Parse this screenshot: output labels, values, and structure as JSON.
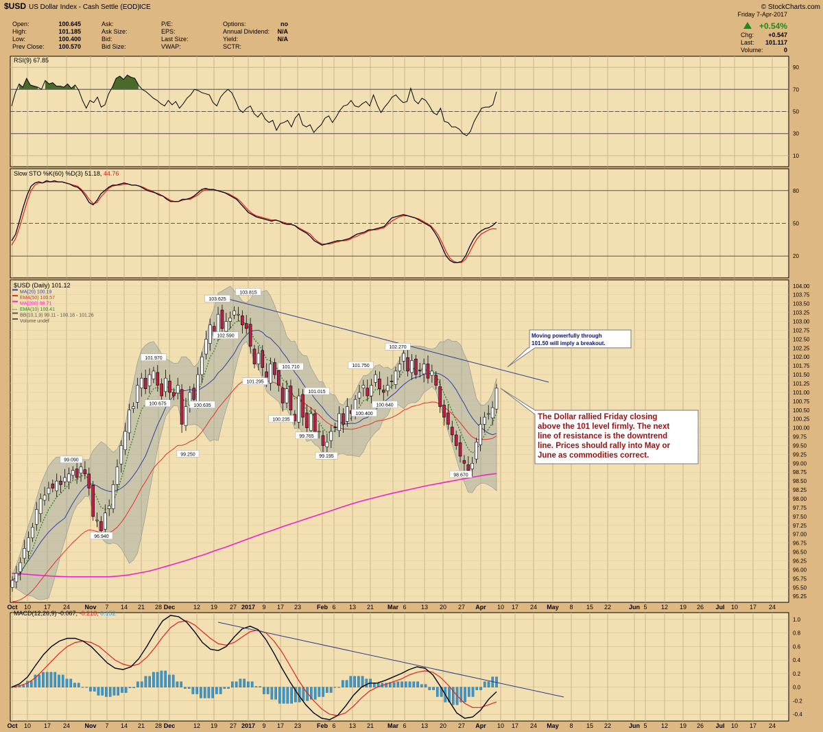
{
  "header": {
    "symbol": "$USD",
    "name": "US Dollar Index - Cash Settle (EOD)",
    "exchange": "ICE",
    "watermark": "© StockCharts.com",
    "date": "Friday  7-Apr-2017",
    "pct_change": "+0.54%",
    "quote_left": [
      {
        "label": "Open:",
        "value": "100.645"
      },
      {
        "label": "High:",
        "value": "101.185"
      },
      {
        "label": "Low:",
        "value": "100.400"
      },
      {
        "label": "Prev Close:",
        "value": "100.570"
      }
    ],
    "quote_mid": [
      "Ask:",
      "Ask Size:",
      "Bid:",
      "Bid Size:"
    ],
    "quote_mid2": [
      "P/E:",
      "EPS:",
      "Last Size:",
      "VWAP:"
    ],
    "quote_right": [
      {
        "label": "Options:",
        "value": "no"
      },
      {
        "label": "Annual Dividend:",
        "value": "N/A"
      },
      {
        "label": "Yield:",
        "value": "N/A"
      },
      {
        "label": "SCTR:",
        "value": ""
      }
    ],
    "quote_far": [
      {
        "label": "Chg:",
        "value": "+0.547"
      },
      {
        "label": "Last:",
        "value": "101.117"
      },
      {
        "label": "Volume:",
        "value": "0"
      }
    ]
  },
  "colors": {
    "bg_outer": "#deb882",
    "bg_panel": "#f2dfb2",
    "candle_up": "#ffffff",
    "candle_down": "#b3244a",
    "ma20": "#2e3fa0",
    "ema50": "#e03030",
    "ma200": "#ee22cc",
    "ema10": "#2a8a2a",
    "bb_fill": "#9aa6a0",
    "rsi_fill": "#4a6a2a",
    "macd_hist": "#3c98cc",
    "trend": "#283c90",
    "note_text": "#a01010",
    "note_text2": "#101070"
  },
  "x_ticks": [
    "Oct",
    "10",
    "17",
    "24",
    "Nov",
    "7",
    "14",
    "21",
    "28",
    "Dec",
    "12",
    "19",
    "27",
    "2017",
    "9",
    "17",
    "23",
    "Feb",
    "6",
    "13",
    "21",
    "Mar",
    "6",
    "13",
    "20",
    "27",
    "Apr",
    "10",
    "17",
    "24",
    "May",
    "8",
    "15",
    "22",
    "Jun",
    "5",
    "12",
    "19",
    "26",
    "Jul",
    "10",
    "17",
    "24"
  ],
  "x_ticks_bold": [
    "Oct",
    "Nov",
    "Dec",
    "2017",
    "Feb",
    "Mar",
    "Apr",
    "May",
    "Jun",
    "Jul"
  ],
  "chart_data": [
    {
      "type": "line",
      "panel": "RSI",
      "title": "RSI(9) 67.85",
      "yticks": [
        90,
        70,
        50,
        30,
        10
      ],
      "ylim": [
        0,
        100
      ],
      "levels": [
        70,
        50,
        30
      ],
      "series": [
        {
          "name": "RSI(9)",
          "values": [
            55,
            67,
            75,
            72,
            80,
            74,
            73,
            72,
            70,
            78,
            75,
            76,
            73,
            73,
            72,
            75,
            71,
            74,
            69,
            60,
            53,
            60,
            58,
            63,
            54,
            56,
            66,
            72,
            80,
            82,
            79,
            83,
            81,
            80,
            74,
            70,
            68,
            65,
            62,
            60,
            57,
            55,
            60,
            56,
            59,
            53,
            57,
            62,
            65,
            70,
            69,
            67,
            66,
            65,
            58,
            55,
            63,
            67,
            70,
            67,
            60,
            52,
            49,
            53,
            55,
            48,
            45,
            49,
            43,
            40,
            42,
            33,
            39,
            40,
            42,
            36,
            44,
            48,
            38,
            36,
            38,
            31,
            35,
            38,
            44,
            46,
            40,
            45,
            51,
            55,
            56,
            60,
            55,
            54,
            57,
            59,
            55,
            65,
            56,
            49,
            54,
            58,
            63,
            65,
            61,
            58,
            59,
            71,
            60,
            57,
            62,
            60,
            55,
            49,
            47,
            53,
            41,
            40,
            36,
            36,
            34,
            30,
            28,
            32,
            41,
            47,
            53,
            54,
            54,
            56,
            67.85
          ]
        }
      ]
    },
    {
      "type": "line",
      "panel": "Slow STO",
      "title": "Slow STO %K(60) %D(3) 51.18, 44.76",
      "yticks": [
        80,
        50,
        20
      ],
      "ylim": [
        0,
        100
      ],
      "levels": [
        80,
        50,
        20
      ],
      "series": [
        {
          "name": "%K(60)",
          "values": [
            34,
            40,
            52,
            65,
            76,
            84,
            87,
            88,
            87,
            89,
            88,
            89,
            88,
            88,
            87,
            86,
            84,
            83,
            80,
            75,
            69,
            67,
            71,
            77,
            80,
            83,
            85,
            85,
            86,
            87,
            86,
            85,
            85,
            84,
            82,
            80,
            79,
            78,
            76,
            75,
            72,
            70,
            70,
            70,
            72,
            72,
            73,
            75,
            78,
            81,
            82,
            81,
            81,
            80,
            79,
            78,
            76,
            74,
            72,
            68,
            64,
            60,
            58,
            56,
            55,
            54,
            53,
            52,
            53,
            52,
            50,
            49,
            49,
            48,
            45,
            43,
            41,
            38,
            34,
            32,
            30,
            31,
            32,
            33,
            34,
            34,
            35,
            36,
            38,
            40,
            41,
            42,
            44,
            44,
            45,
            46,
            47,
            51,
            55,
            56,
            57,
            58,
            57,
            56,
            55,
            53,
            51,
            49,
            47,
            42,
            36,
            28,
            20,
            16,
            14,
            14,
            15,
            20,
            28,
            35,
            40,
            43,
            45,
            46,
            48,
            51.18
          ]
        },
        {
          "name": "%D(3)",
          "values": [
            30,
            36,
            46,
            58,
            70,
            80,
            85,
            87,
            87,
            88,
            88,
            88,
            88,
            88,
            87,
            86,
            85,
            84,
            81,
            77,
            72,
            68,
            69,
            74,
            78,
            82,
            84,
            85,
            85,
            86,
            86,
            85,
            85,
            84,
            83,
            81,
            80,
            78,
            77,
            75,
            73,
            71,
            70,
            70,
            71,
            72,
            72,
            74,
            76,
            79,
            81,
            81,
            81,
            80,
            79,
            78,
            77,
            75,
            73,
            70,
            66,
            62,
            59,
            57,
            56,
            55,
            54,
            53,
            53,
            52,
            51,
            50,
            49,
            48,
            46,
            44,
            42,
            40,
            36,
            33,
            31,
            31,
            31,
            32,
            33,
            34,
            34,
            35,
            37,
            38,
            40,
            41,
            43,
            44,
            44,
            45,
            46,
            49,
            52,
            54,
            56,
            57,
            57,
            56,
            55,
            54,
            52,
            50,
            48,
            44,
            39,
            32,
            24,
            18,
            15,
            14,
            14,
            17,
            23,
            30,
            36,
            40,
            42,
            44,
            45,
            44.76
          ]
        }
      ]
    },
    {
      "type": "candlestick",
      "panel": "Price",
      "title": "$USD (Daily) 101.12",
      "legend": [
        "MA(20) 100.19",
        "EMA(50) 100.57",
        "MA(200) 98.71",
        "EMA(10) 100.41",
        "BB(10,1,9) 99.11 - 100.18 - 101.26",
        "Volume undef"
      ],
      "yticks": [
        104.0,
        103.75,
        103.5,
        103.25,
        103.0,
        102.75,
        102.5,
        102.25,
        102.0,
        101.75,
        101.5,
        101.25,
        101.0,
        100.75,
        100.5,
        100.25,
        100.0,
        99.75,
        99.5,
        99.25,
        99.0,
        98.75,
        98.5,
        98.25,
        98.0,
        97.75,
        97.5,
        97.25,
        97.0,
        96.75,
        96.5,
        96.25,
        96.0,
        95.75,
        95.5,
        95.25
      ],
      "ylim": [
        95.08,
        104.17
      ],
      "closes": [
        95.7,
        95.9,
        96.2,
        96.6,
        96.9,
        97.2,
        97.7,
        98.0,
        98.1,
        98.3,
        98.3,
        98.5,
        98.4,
        98.6,
        98.7,
        98.8,
        98.6,
        98.9,
        98.7,
        98.3,
        97.5,
        97.4,
        97.1,
        97.6,
        97.8,
        98.4,
        98.9,
        99.5,
        99.9,
        100.5,
        100.6,
        101.2,
        101.4,
        101.1,
        101.5,
        101.6,
        101.2,
        100.9,
        101.4,
        101.0,
        100.9,
        101.2,
        100.1,
        100.6,
        101.0,
        100.8,
        101.5,
        102.0,
        102.5,
        102.9,
        102.6,
        103.2,
        102.8,
        103.0,
        103.1,
        103.3,
        103.2,
        102.9,
        102.8,
        102.3,
        101.8,
        102.1,
        101.7,
        101.3,
        101.8,
        101.5,
        101.2,
        100.7,
        101.1,
        100.5,
        100.2,
        100.9,
        100.3,
        100.0,
        100.4,
        99.8,
        99.9,
        99.5,
        99.6,
        99.9,
        100.0,
        100.4,
        100.1,
        100.6,
        100.4,
        100.8,
        101.0,
        101.2,
        100.9,
        101.2,
        101.5,
        101.1,
        101.0,
        101.2,
        101.3,
        101.6,
        101.8,
        102.1,
        101.6,
        101.9,
        101.5,
        101.6,
        101.8,
        101.4,
        101.6,
        101.2,
        100.6,
        100.3,
        100.1,
        99.8,
        99.5,
        99.2,
        99.0,
        98.8,
        99.0,
        99.6,
        100.1,
        100.3,
        100.4,
        100.57,
        101.117
      ],
      "ma200": [
        95.9,
        95.88,
        95.86,
        95.84,
        95.82,
        95.81,
        95.8,
        95.8,
        95.8,
        95.8,
        95.8,
        95.82,
        95.85,
        95.9,
        95.95,
        96.02,
        96.1,
        96.18,
        96.26,
        96.35,
        96.44,
        96.54,
        96.63,
        96.73,
        96.83,
        96.93,
        97.03,
        97.12,
        97.22,
        97.31,
        97.4,
        97.49,
        97.58,
        97.67,
        97.76,
        97.85,
        97.93,
        98.0,
        98.07,
        98.14,
        98.2,
        98.26,
        98.32,
        98.38,
        98.43,
        98.48,
        98.53,
        98.58,
        98.63,
        98.68,
        98.71
      ],
      "annotations": [
        {
          "label": "99.090",
          "value": 99.09
        },
        {
          "label": "96.940",
          "value": 96.94
        },
        {
          "label": "101.970",
          "value": 101.97
        },
        {
          "label": "100.675",
          "value": 100.675
        },
        {
          "label": "99.250",
          "value": 99.25
        },
        {
          "label": "103.625",
          "value": 103.625
        },
        {
          "label": "102.590",
          "value": 102.59
        },
        {
          "label": "100.635",
          "value": 100.635
        },
        {
          "label": "103.815",
          "value": 103.815
        },
        {
          "label": "101.295",
          "value": 101.295
        },
        {
          "label": "101.710",
          "value": 101.71
        },
        {
          "label": "100.235",
          "value": 100.235
        },
        {
          "label": "101.015",
          "value": 101.015
        },
        {
          "label": "99.765",
          "value": 99.765
        },
        {
          "label": "99.195",
          "value": 99.195
        },
        {
          "label": "101.750",
          "value": 101.75
        },
        {
          "label": "100.400",
          "value": 100.4
        },
        {
          "label": "102.270",
          "value": 102.27
        },
        {
          "label": "100.640",
          "value": 100.64
        },
        {
          "label": "98.670",
          "value": 98.67
        }
      ],
      "note1": [
        "Moving powerfully through",
        "101.50 will imply a breakout."
      ],
      "note2": [
        "The Dollar rallied Friday closing",
        "above the 101 level firmly. The next",
        "line of resistance is the downtrend",
        "line. Prices should rally into May or",
        "June as commodities correct."
      ]
    },
    {
      "type": "line",
      "panel": "MACD",
      "title": "MACD(12,26,9)",
      "value1": "-0.067",
      "value2": "-0.218",
      "value3": "0.152",
      "yticks": [
        "1.0",
        "0.8",
        "0.6",
        "0.4",
        "0.2",
        "0.0",
        "-0.2",
        "-0.4"
      ],
      "ylim": [
        -0.5,
        1.1
      ],
      "series": [
        {
          "name": "MACD(12,26,9)",
          "values": [
            0.0,
            0.05,
            0.15,
            0.32,
            0.48,
            0.6,
            0.68,
            0.72,
            0.72,
            0.68,
            0.6,
            0.48,
            0.36,
            0.28,
            0.26,
            0.3,
            0.42,
            0.6,
            0.8,
            0.98,
            1.06,
            1.04,
            0.96,
            0.82,
            0.66,
            0.56,
            0.54,
            0.6,
            0.74,
            0.86,
            0.9,
            0.85,
            0.7,
            0.5,
            0.28,
            0.08,
            -0.1,
            -0.26,
            -0.38,
            -0.46,
            -0.48,
            -0.42,
            -0.28,
            -0.12,
            0.0,
            0.06,
            0.06,
            0.1,
            0.15,
            0.2,
            0.26,
            0.3,
            0.28,
            0.18,
            0.0,
            -0.2,
            -0.38,
            -0.46,
            -0.44,
            -0.34,
            -0.18,
            -0.067
          ]
        },
        {
          "name": "Signal",
          "values": [
            0.0,
            0.02,
            0.06,
            0.14,
            0.26,
            0.38,
            0.5,
            0.6,
            0.66,
            0.68,
            0.66,
            0.6,
            0.5,
            0.4,
            0.34,
            0.31,
            0.34,
            0.44,
            0.58,
            0.74,
            0.88,
            0.96,
            0.98,
            0.92,
            0.82,
            0.72,
            0.64,
            0.62,
            0.66,
            0.74,
            0.82,
            0.84,
            0.8,
            0.68,
            0.52,
            0.32,
            0.12,
            -0.06,
            -0.2,
            -0.32,
            -0.4,
            -0.42,
            -0.38,
            -0.28,
            -0.16,
            -0.06,
            0.0,
            0.04,
            0.08,
            0.12,
            0.18,
            0.22,
            0.24,
            0.22,
            0.14,
            0.02,
            -0.12,
            -0.24,
            -0.3,
            -0.3,
            -0.26,
            -0.218
          ]
        }
      ],
      "histogram": [
        0.0,
        0.03,
        0.09,
        0.18,
        0.22,
        0.22,
        0.18,
        0.12,
        0.06,
        0.0,
        -0.06,
        -0.12,
        -0.14,
        -0.12,
        -0.08,
        -0.01,
        0.08,
        0.16,
        0.22,
        0.24,
        0.18,
        0.08,
        -0.02,
        -0.1,
        -0.16,
        -0.16,
        -0.1,
        -0.02,
        0.08,
        0.12,
        0.08,
        0.01,
        -0.1,
        -0.18,
        -0.24,
        -0.24,
        -0.22,
        -0.2,
        -0.18,
        -0.14,
        -0.08,
        0.0,
        0.1,
        0.16,
        0.16,
        0.12,
        0.06,
        0.06,
        0.07,
        0.08,
        0.08,
        0.08,
        0.04,
        -0.04,
        -0.14,
        -0.22,
        -0.26,
        -0.22,
        -0.14,
        -0.04,
        0.08,
        0.152
      ]
    }
  ]
}
